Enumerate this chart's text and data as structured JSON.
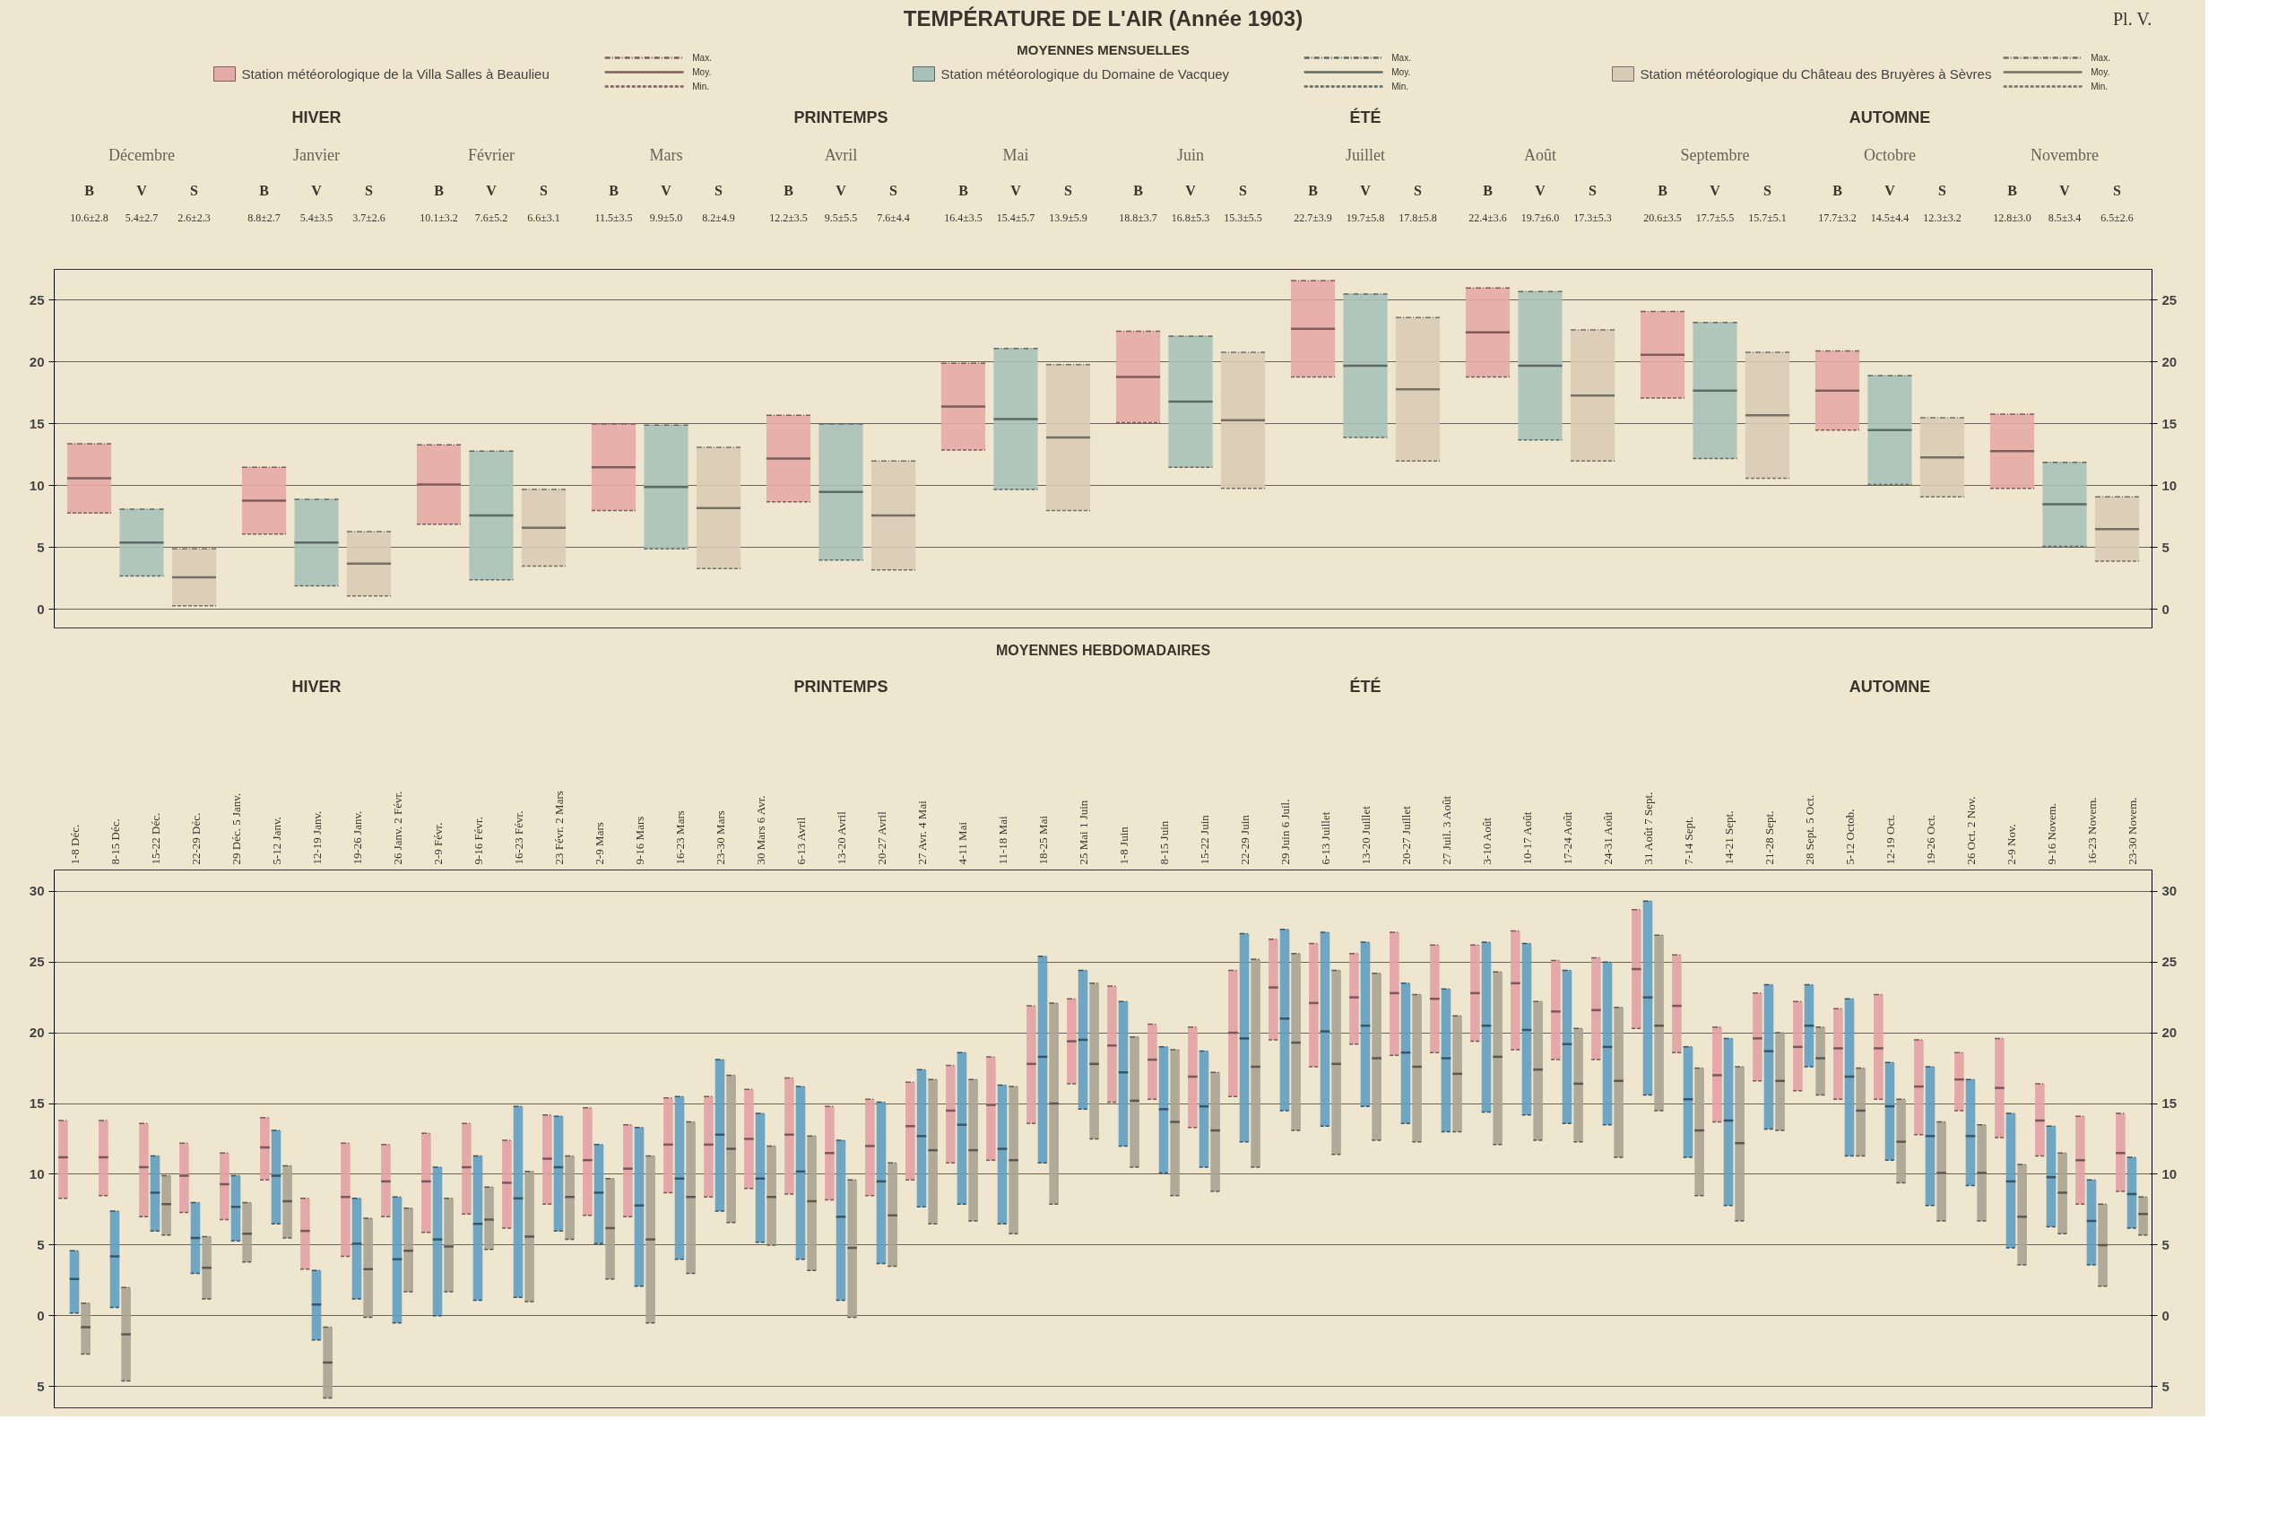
{
  "chart_data": [
    {
      "type": "box",
      "title": "TEMPÉRATURE DE L'AIR (Année 1903)",
      "subtitle": "MOYENNES MENSUELLES",
      "categories": [
        "Décembre",
        "Janvier",
        "Février",
        "Mars",
        "Avril",
        "Mai",
        "Juin",
        "Juillet",
        "Août",
        "Septembre",
        "Octobre",
        "Novembre"
      ],
      "ylim": [
        -1.5,
        27.5
      ],
      "yticks": [
        0,
        5,
        10,
        15,
        20,
        25
      ],
      "y2lim": [
        -1.5,
        27.5
      ],
      "y2ticks": [
        0,
        5,
        10,
        15,
        20,
        25
      ],
      "grid": "y",
      "legend": "top",
      "annotations": [
        "Max.",
        "Moy.",
        "Min.",
        "HIVER",
        "PRINTEMPS",
        "ÉTÉ",
        "AUTOMNE",
        "B",
        "V",
        "S",
        "Pl. V."
      ],
      "series": [
        {
          "name": "Station météorologique de la Villa Salles à Beaulieu",
          "color": "#e6aaa6",
          "value_labels": [
            "10.6±2.8",
            "8.8±2.7",
            "10.1±3.2",
            "11.5±3.5",
            "12.2±3.5",
            "16.4±3.5",
            "18.8±3.7",
            "22.7±3.9",
            "22.4±3.6",
            "20.6±3.5",
            "17.7±3.2",
            "12.8±3.0"
          ],
          "boxes": [
            {
              "low": 7.8,
              "q1": 7.8,
              "median": 10.6,
              "q3": 13.4,
              "high": 13.4
            },
            {
              "low": 6.1,
              "q1": 6.1,
              "median": 8.8,
              "q3": 11.5,
              "high": 11.5
            },
            {
              "low": 6.9,
              "q1": 6.9,
              "median": 10.1,
              "q3": 13.3,
              "high": 13.3
            },
            {
              "low": 8.0,
              "q1": 8.0,
              "median": 11.5,
              "q3": 15.0,
              "high": 15.0
            },
            {
              "low": 8.7,
              "q1": 8.7,
              "median": 12.2,
              "q3": 15.7,
              "high": 15.7
            },
            {
              "low": 12.9,
              "q1": 12.9,
              "median": 16.4,
              "q3": 19.9,
              "high": 19.9
            },
            {
              "low": 15.1,
              "q1": 15.1,
              "median": 18.8,
              "q3": 22.5,
              "high": 22.5
            },
            {
              "low": 18.8,
              "q1": 18.8,
              "median": 22.7,
              "q3": 26.6,
              "high": 26.6
            },
            {
              "low": 18.8,
              "q1": 18.8,
              "median": 22.4,
              "q3": 26.0,
              "high": 26.0
            },
            {
              "low": 17.1,
              "q1": 17.1,
              "median": 20.6,
              "q3": 24.1,
              "high": 24.1
            },
            {
              "low": 14.5,
              "q1": 14.5,
              "median": 17.7,
              "q3": 20.9,
              "high": 20.9
            },
            {
              "low": 9.8,
              "q1": 9.8,
              "median": 12.8,
              "q3": 15.8,
              "high": 15.8
            }
          ]
        },
        {
          "name": "Station météorologique du Domaine de Vacquey",
          "color": "#a8c2b8",
          "value_labels": [
            "5.4±2.7",
            "5.4±3.5",
            "7.6±5.2",
            "9.9±5.0",
            "9.5±5.5",
            "15.4±5.7",
            "16.8±5.3",
            "19.7±5.8",
            "19.7±6.0",
            "17.7±5.5",
            "14.5±4.4",
            "8.5±3.4"
          ],
          "boxes": [
            {
              "low": 2.7,
              "q1": 2.7,
              "median": 5.4,
              "q3": 8.1,
              "high": 8.1
            },
            {
              "low": 1.9,
              "q1": 1.9,
              "median": 5.4,
              "q3": 8.9,
              "high": 8.9
            },
            {
              "low": 2.4,
              "q1": 2.4,
              "median": 7.6,
              "q3": 12.8,
              "high": 12.8
            },
            {
              "low": 4.9,
              "q1": 4.9,
              "median": 9.9,
              "q3": 14.9,
              "high": 14.9
            },
            {
              "low": 4.0,
              "q1": 4.0,
              "median": 9.5,
              "q3": 15.0,
              "high": 15.0
            },
            {
              "low": 9.7,
              "q1": 9.7,
              "median": 15.4,
              "q3": 21.1,
              "high": 21.1
            },
            {
              "low": 11.5,
              "q1": 11.5,
              "median": 16.8,
              "q3": 22.1,
              "high": 22.1
            },
            {
              "low": 13.9,
              "q1": 13.9,
              "median": 19.7,
              "q3": 25.5,
              "high": 25.5
            },
            {
              "low": 13.7,
              "q1": 13.7,
              "median": 19.7,
              "q3": 25.7,
              "high": 25.7
            },
            {
              "low": 12.2,
              "q1": 12.2,
              "median": 17.7,
              "q3": 23.2,
              "high": 23.2
            },
            {
              "low": 10.1,
              "q1": 10.1,
              "median": 14.5,
              "q3": 18.9,
              "high": 18.9
            },
            {
              "low": 5.1,
              "q1": 5.1,
              "median": 8.5,
              "q3": 11.9,
              "high": 11.9
            }
          ]
        },
        {
          "name": "Station météorologique du Château des Bruyères à Sèvres",
          "color": "#d9cbb4",
          "value_labels": [
            "2.6±2.3",
            "3.7±2.6",
            "6.6±3.1",
            "8.2±4.9",
            "7.6±4.4",
            "13.9±5.9",
            "15.3±5.5",
            "17.8±5.8",
            "17.3±5.3",
            "15.7±5.1",
            "12.3±3.2",
            "6.5±2.6"
          ],
          "boxes": [
            {
              "low": 0.3,
              "q1": 0.3,
              "median": 2.6,
              "q3": 4.9,
              "high": 4.9
            },
            {
              "low": 1.1,
              "q1": 1.1,
              "median": 3.7,
              "q3": 6.3,
              "high": 6.3
            },
            {
              "low": 3.5,
              "q1": 3.5,
              "median": 6.6,
              "q3": 9.7,
              "high": 9.7
            },
            {
              "low": 3.3,
              "q1": 3.3,
              "median": 8.2,
              "q3": 13.1,
              "high": 13.1
            },
            {
              "low": 3.2,
              "q1": 3.2,
              "median": 7.6,
              "q3": 12.0,
              "high": 12.0
            },
            {
              "low": 8.0,
              "q1": 8.0,
              "median": 13.9,
              "q3": 19.8,
              "high": 19.8
            },
            {
              "low": 9.8,
              "q1": 9.8,
              "median": 15.3,
              "q3": 20.8,
              "high": 20.8
            },
            {
              "low": 12.0,
              "q1": 12.0,
              "median": 17.8,
              "q3": 23.6,
              "high": 23.6
            },
            {
              "low": 12.0,
              "q1": 12.0,
              "median": 17.3,
              "q3": 22.6,
              "high": 22.6
            },
            {
              "low": 10.6,
              "q1": 10.6,
              "median": 15.7,
              "q3": 20.8,
              "high": 20.8
            },
            {
              "low": 9.1,
              "q1": 9.1,
              "median": 12.3,
              "q3": 15.5,
              "high": 15.5
            },
            {
              "low": 3.9,
              "q1": 3.9,
              "median": 6.5,
              "q3": 9.1,
              "high": 9.1
            }
          ]
        }
      ]
    },
    {
      "type": "box",
      "title": "MOYENNES HEBDOMADAIRES",
      "categories": [
        "1-8 Déc.",
        "8-15 Déc.",
        "15-22 Déc.",
        "22-29 Déc.",
        "29 Déc. 5 Janv.",
        "5-12 Janv.",
        "12-19 Janv.",
        "19-26 Janv.",
        "26 Janv. 2 Févr.",
        "2-9 Févr.",
        "9-16 Févr.",
        "16-23 Févr.",
        "23 Févr. 2 Mars",
        "2-9 Mars",
        "9-16 Mars",
        "16-23 Mars",
        "23-30 Mars",
        "30 Mars 6 Avr.",
        "6-13 Avril",
        "13-20 Avril",
        "20-27 Avril",
        "27 Avr. 4 Mai",
        "4-11 Mai",
        "11-18 Mai",
        "18-25 Mai",
        "25 Mai 1 Juin",
        "1-8 Juin",
        "8-15 Juin",
        "15-22 Juin",
        "22-29 Juin",
        "29 Juin 6 Juil.",
        "6-13 Juillet",
        "13-20 Juillet",
        "20-27 Juillet",
        "27 Juil. 3 Août",
        "3-10 Août",
        "10-17 Août",
        "17-24 Août",
        "24-31 Août",
        "31 Août 7 Sept.",
        "7-14 Sept.",
        "14-21 Sept.",
        "21-28 Sept.",
        "28 Sept. 5 Oct.",
        "5-12 Octob.",
        "12-19 Oct.",
        "19-26 Oct.",
        "26 Oct. 2 Nov.",
        "2-9 Nov.",
        "9-16 Novem.",
        "16-23 Novem.",
        "23-30 Novem."
      ],
      "ylim": [
        -6.5,
        31.5
      ],
      "yticks": [
        {
          "value": -5,
          "label": "5"
        },
        0,
        5,
        10,
        15,
        20,
        25,
        30
      ],
      "y2lim": [
        -6.5,
        31.5
      ],
      "y2ticks": [
        {
          "value": -5,
          "label": "5"
        },
        0,
        5,
        10,
        15,
        20,
        25,
        30
      ],
      "grid": "y",
      "annotations": [
        "HIVER",
        "PRINTEMPS",
        "ÉTÉ",
        "AUTOMNE"
      ],
      "series": [
        {
          "color": "#e3a1a4",
          "boxes": [
            {
              "low": 8.3,
              "q1": 8.3,
              "median": 11.2,
              "q3": 13.8,
              "high": 13.8
            },
            {
              "low": 8.5,
              "q1": 8.5,
              "median": 11.2,
              "q3": 13.8,
              "high": 13.8
            },
            {
              "low": 7.0,
              "q1": 7.0,
              "median": 10.5,
              "q3": 13.6,
              "high": 13.6
            },
            {
              "low": 7.3,
              "q1": 7.3,
              "median": 9.9,
              "q3": 12.2,
              "high": 12.2
            },
            {
              "low": 6.8,
              "q1": 6.8,
              "median": 9.3,
              "q3": 11.5,
              "high": 11.5
            },
            {
              "low": 9.6,
              "q1": 9.6,
              "median": 11.9,
              "q3": 14.0,
              "high": 14.0
            },
            {
              "low": 3.3,
              "q1": 3.3,
              "median": 6.0,
              "q3": 8.3,
              "high": 8.3
            },
            {
              "low": 4.2,
              "q1": 4.2,
              "median": 8.4,
              "q3": 12.2,
              "high": 12.2
            },
            {
              "low": 7.0,
              "q1": 7.0,
              "median": 9.5,
              "q3": 12.1,
              "high": 12.1
            },
            {
              "low": 5.9,
              "q1": 5.9,
              "median": 9.5,
              "q3": 12.9,
              "high": 12.9
            },
            {
              "low": 7.2,
              "q1": 7.2,
              "median": 10.5,
              "q3": 13.6,
              "high": 13.6
            },
            {
              "low": 6.2,
              "q1": 6.2,
              "median": 9.4,
              "q3": 12.4,
              "high": 12.4
            },
            {
              "low": 7.9,
              "q1": 7.9,
              "median": 11.1,
              "q3": 14.2,
              "high": 14.2
            },
            {
              "low": 7.1,
              "q1": 7.1,
              "median": 11.0,
              "q3": 14.7,
              "high": 14.7
            },
            {
              "low": 7.0,
              "q1": 7.0,
              "median": 10.4,
              "q3": 13.5,
              "high": 13.5
            },
            {
              "low": 8.7,
              "q1": 8.7,
              "median": 12.1,
              "q3": 15.4,
              "high": 15.4
            },
            {
              "low": 8.4,
              "q1": 8.4,
              "median": 12.1,
              "q3": 15.5,
              "high": 15.5
            },
            {
              "low": 9.0,
              "q1": 9.0,
              "median": 12.5,
              "q3": 16.0,
              "high": 16.0
            },
            {
              "low": 8.6,
              "q1": 8.6,
              "median": 12.8,
              "q3": 16.8,
              "high": 16.8
            },
            {
              "low": 8.2,
              "q1": 8.2,
              "median": 11.5,
              "q3": 14.8,
              "high": 14.8
            },
            {
              "low": 8.5,
              "q1": 8.5,
              "median": 12.0,
              "q3": 15.3,
              "high": 15.3
            },
            {
              "low": 9.6,
              "q1": 9.6,
              "median": 13.4,
              "q3": 16.5,
              "high": 16.5
            },
            {
              "low": 10.8,
              "q1": 10.8,
              "median": 14.5,
              "q3": 17.7,
              "high": 17.7
            },
            {
              "low": 11.0,
              "q1": 11.0,
              "median": 14.9,
              "q3": 18.3,
              "high": 18.3
            },
            {
              "low": 13.6,
              "q1": 13.6,
              "median": 17.8,
              "q3": 21.9,
              "high": 21.9
            },
            {
              "low": 16.4,
              "q1": 16.4,
              "median": 19.4,
              "q3": 22.4,
              "high": 22.4
            },
            {
              "low": 15.1,
              "q1": 15.1,
              "median": 19.1,
              "q3": 23.3,
              "high": 23.3
            },
            {
              "low": 15.3,
              "q1": 15.3,
              "median": 18.1,
              "q3": 20.6,
              "high": 20.6
            },
            {
              "low": 13.3,
              "q1": 13.3,
              "median": 16.9,
              "q3": 20.4,
              "high": 20.4
            },
            {
              "low": 15.5,
              "q1": 15.5,
              "median": 20.0,
              "q3": 24.4,
              "high": 24.4
            },
            {
              "low": 19.5,
              "q1": 19.5,
              "median": 23.2,
              "q3": 26.6,
              "high": 26.6
            },
            {
              "low": 17.6,
              "q1": 17.6,
              "median": 22.1,
              "q3": 26.3,
              "high": 26.3
            },
            {
              "low": 19.2,
              "q1": 19.2,
              "median": 22.5,
              "q3": 25.6,
              "high": 25.6
            },
            {
              "low": 18.4,
              "q1": 18.4,
              "median": 22.8,
              "q3": 27.1,
              "high": 27.1
            },
            {
              "low": 18.6,
              "q1": 18.6,
              "median": 22.4,
              "q3": 26.2,
              "high": 26.2
            },
            {
              "low": 19.4,
              "q1": 19.4,
              "median": 22.8,
              "q3": 26.2,
              "high": 26.2
            },
            {
              "low": 18.8,
              "q1": 18.8,
              "median": 23.5,
              "q3": 27.2,
              "high": 27.2
            },
            {
              "low": 18.1,
              "q1": 18.1,
              "median": 21.5,
              "q3": 25.1,
              "high": 25.1
            },
            {
              "low": 18.1,
              "q1": 18.1,
              "median": 21.6,
              "q3": 25.3,
              "high": 25.3
            },
            {
              "low": 20.3,
              "q1": 20.3,
              "median": 24.5,
              "q3": 28.7,
              "high": 28.7
            },
            {
              "low": 18.6,
              "q1": 18.6,
              "median": 21.9,
              "q3": 25.5,
              "high": 25.5
            },
            {
              "low": 13.7,
              "q1": 13.7,
              "median": 17.0,
              "q3": 20.4,
              "high": 20.4
            },
            {
              "low": 16.6,
              "q1": 16.6,
              "median": 19.6,
              "q3": 22.8,
              "high": 22.8
            },
            {
              "low": 15.9,
              "q1": 15.9,
              "median": 19.0,
              "q3": 22.2,
              "high": 22.2
            },
            {
              "low": 15.3,
              "q1": 15.3,
              "median": 18.9,
              "q3": 21.7,
              "high": 21.7
            },
            {
              "low": 15.3,
              "q1": 15.3,
              "median": 18.9,
              "q3": 22.7,
              "high": 22.7
            },
            {
              "low": 12.8,
              "q1": 12.8,
              "median": 16.2,
              "q3": 19.5,
              "high": 19.5
            },
            {
              "low": 14.5,
              "q1": 14.5,
              "median": 16.7,
              "q3": 18.6,
              "high": 18.6
            },
            {
              "low": 12.6,
              "q1": 12.6,
              "median": 16.1,
              "q3": 19.6,
              "high": 19.6
            },
            {
              "low": 11.3,
              "q1": 11.3,
              "median": 13.8,
              "q3": 16.4,
              "high": 16.4
            },
            {
              "low": 7.9,
              "q1": 7.9,
              "median": 11.0,
              "q3": 14.1,
              "high": 14.1
            },
            {
              "low": 8.8,
              "q1": 8.8,
              "median": 11.5,
              "q3": 14.3,
              "high": 14.3
            }
          ]
        },
        {
          "color": "#5f9ec2",
          "boxes": [
            {
              "low": 0.2,
              "q1": 0.2,
              "median": 2.6,
              "q3": 4.6,
              "high": 4.6
            },
            {
              "low": 0.6,
              "q1": 0.6,
              "median": 4.2,
              "q3": 7.4,
              "high": 7.4
            },
            {
              "low": 6.0,
              "q1": 6.0,
              "median": 8.7,
              "q3": 11.3,
              "high": 11.3
            },
            {
              "low": 3.0,
              "q1": 3.0,
              "median": 5.5,
              "q3": 8.0,
              "high": 8.0
            },
            {
              "low": 5.3,
              "q1": 5.3,
              "median": 7.7,
              "q3": 9.9,
              "high": 9.9
            },
            {
              "low": 6.5,
              "q1": 6.5,
              "median": 9.9,
              "q3": 13.1,
              "high": 13.1
            },
            {
              "low": -1.7,
              "q1": -1.7,
              "median": 0.8,
              "q3": 3.2,
              "high": 3.2
            },
            {
              "low": 1.2,
              "q1": 1.2,
              "median": 5.1,
              "q3": 8.3,
              "high": 8.3
            },
            {
              "low": -0.5,
              "q1": -0.5,
              "median": 4.0,
              "q3": 8.4,
              "high": 8.4
            },
            {
              "low": 0.0,
              "q1": 0.0,
              "median": 5.4,
              "q3": 10.5,
              "high": 10.5
            },
            {
              "low": 1.1,
              "q1": 1.1,
              "median": 6.5,
              "q3": 11.3,
              "high": 11.3
            },
            {
              "low": 1.3,
              "q1": 1.3,
              "median": 8.3,
              "q3": 14.8,
              "high": 14.8
            },
            {
              "low": 6.0,
              "q1": 6.0,
              "median": 10.5,
              "q3": 14.1,
              "high": 14.1
            },
            {
              "low": 5.1,
              "q1": 5.1,
              "median": 8.7,
              "q3": 12.1,
              "high": 12.1
            },
            {
              "low": 2.1,
              "q1": 2.1,
              "median": 7.8,
              "q3": 13.3,
              "high": 13.3
            },
            {
              "low": 4.0,
              "q1": 4.0,
              "median": 9.7,
              "q3": 15.5,
              "high": 15.5
            },
            {
              "low": 7.4,
              "q1": 7.4,
              "median": 12.8,
              "q3": 18.1,
              "high": 18.1
            },
            {
              "low": 5.2,
              "q1": 5.2,
              "median": 9.7,
              "q3": 14.3,
              "high": 14.3
            },
            {
              "low": 4.0,
              "q1": 4.0,
              "median": 10.2,
              "q3": 16.2,
              "high": 16.2
            },
            {
              "low": 1.1,
              "q1": 1.1,
              "median": 7.0,
              "q3": 12.4,
              "high": 12.4
            },
            {
              "low": 3.7,
              "q1": 3.7,
              "median": 9.5,
              "q3": 15.1,
              "high": 15.1
            },
            {
              "low": 7.7,
              "q1": 7.7,
              "median": 12.7,
              "q3": 17.4,
              "high": 17.4
            },
            {
              "low": 7.9,
              "q1": 7.9,
              "median": 13.5,
              "q3": 18.6,
              "high": 18.6
            },
            {
              "low": 6.5,
              "q1": 6.5,
              "median": 11.8,
              "q3": 16.3,
              "high": 16.3
            },
            {
              "low": 10.8,
              "q1": 10.8,
              "median": 18.3,
              "q3": 25.4,
              "high": 25.4
            },
            {
              "low": 14.6,
              "q1": 14.6,
              "median": 19.5,
              "q3": 24.4,
              "high": 24.4
            },
            {
              "low": 12.0,
              "q1": 12.0,
              "median": 17.2,
              "q3": 22.2,
              "high": 22.2
            },
            {
              "low": 10.1,
              "q1": 10.1,
              "median": 14.6,
              "q3": 19.0,
              "high": 19.0
            },
            {
              "low": 10.5,
              "q1": 10.5,
              "median": 14.8,
              "q3": 18.7,
              "high": 18.7
            },
            {
              "low": 12.3,
              "q1": 12.3,
              "median": 19.6,
              "q3": 27.0,
              "high": 27.0
            },
            {
              "low": 14.5,
              "q1": 14.5,
              "median": 21.0,
              "q3": 27.3,
              "high": 27.3
            },
            {
              "low": 13.4,
              "q1": 13.4,
              "median": 20.1,
              "q3": 27.1,
              "high": 27.1
            },
            {
              "low": 14.8,
              "q1": 14.8,
              "median": 20.5,
              "q3": 26.4,
              "high": 26.4
            },
            {
              "low": 13.6,
              "q1": 13.6,
              "median": 18.6,
              "q3": 23.5,
              "high": 23.5
            },
            {
              "low": 13.0,
              "q1": 13.0,
              "median": 18.2,
              "q3": 23.1,
              "high": 23.1
            },
            {
              "low": 14.4,
              "q1": 14.4,
              "median": 20.5,
              "q3": 26.4,
              "high": 26.4
            },
            {
              "low": 14.2,
              "q1": 14.2,
              "median": 20.2,
              "q3": 26.3,
              "high": 26.3
            },
            {
              "low": 13.6,
              "q1": 13.6,
              "median": 19.2,
              "q3": 24.4,
              "high": 24.4
            },
            {
              "low": 13.5,
              "q1": 13.5,
              "median": 19.0,
              "q3": 25.0,
              "high": 25.0
            },
            {
              "low": 15.6,
              "q1": 15.6,
              "median": 22.5,
              "q3": 29.3,
              "high": 29.3
            },
            {
              "low": 11.2,
              "q1": 11.2,
              "median": 15.3,
              "q3": 19.0,
              "high": 19.0
            },
            {
              "low": 7.8,
              "q1": 7.8,
              "median": 13.8,
              "q3": 19.6,
              "high": 19.6
            },
            {
              "low": 13.2,
              "q1": 13.2,
              "median": 18.7,
              "q3": 23.4,
              "high": 23.4
            },
            {
              "low": 17.6,
              "q1": 17.6,
              "median": 20.5,
              "q3": 23.4,
              "high": 23.4
            },
            {
              "low": 11.3,
              "q1": 11.3,
              "median": 16.9,
              "q3": 22.4,
              "high": 22.4
            },
            {
              "low": 11.0,
              "q1": 11.0,
              "median": 14.8,
              "q3": 17.9,
              "high": 17.9
            },
            {
              "low": 7.8,
              "q1": 7.8,
              "median": 12.7,
              "q3": 17.6,
              "high": 17.6
            },
            {
              "low": 9.2,
              "q1": 9.2,
              "median": 12.7,
              "q3": 16.7,
              "high": 16.7
            },
            {
              "low": 4.8,
              "q1": 4.8,
              "median": 9.5,
              "q3": 14.3,
              "high": 14.3
            },
            {
              "low": 6.3,
              "q1": 6.3,
              "median": 9.8,
              "q3": 13.4,
              "high": 13.4
            },
            {
              "low": 3.6,
              "q1": 3.6,
              "median": 6.7,
              "q3": 9.6,
              "high": 9.6
            },
            {
              "low": 6.2,
              "q1": 6.2,
              "median": 8.6,
              "q3": 11.2,
              "high": 11.2
            }
          ]
        },
        {
          "color": "#aaa392",
          "boxes": [
            {
              "low": -2.7,
              "q1": -2.7,
              "median": -0.8,
              "q3": 0.9,
              "high": 0.9
            },
            {
              "low": -4.6,
              "q1": -4.6,
              "median": -1.3,
              "q3": 2.0,
              "high": 2.0
            },
            {
              "low": 5.7,
              "q1": 5.7,
              "median": 7.9,
              "q3": 9.9,
              "high": 9.9
            },
            {
              "low": 1.2,
              "q1": 1.2,
              "median": 3.4,
              "q3": 5.6,
              "high": 5.6
            },
            {
              "low": 3.8,
              "q1": 3.8,
              "median": 5.8,
              "q3": 8.0,
              "high": 8.0
            },
            {
              "low": 5.5,
              "q1": 5.5,
              "median": 8.1,
              "q3": 10.6,
              "high": 10.6
            },
            {
              "low": -5.8,
              "q1": -5.8,
              "median": -3.3,
              "q3": -0.8,
              "high": -0.8
            },
            {
              "low": -0.1,
              "q1": -0.1,
              "median": 3.3,
              "q3": 6.9,
              "high": 6.9
            },
            {
              "low": 1.7,
              "q1": 1.7,
              "median": 4.6,
              "q3": 7.6,
              "high": 7.6
            },
            {
              "low": 1.7,
              "q1": 1.7,
              "median": 4.9,
              "q3": 8.3,
              "high": 8.3
            },
            {
              "low": 4.7,
              "q1": 4.7,
              "median": 6.8,
              "q3": 9.1,
              "high": 9.1
            },
            {
              "low": 1.0,
              "q1": 1.0,
              "median": 5.6,
              "q3": 10.2,
              "high": 10.2
            },
            {
              "low": 5.4,
              "q1": 5.4,
              "median": 8.4,
              "q3": 11.3,
              "high": 11.3
            },
            {
              "low": 2.6,
              "q1": 2.6,
              "median": 6.2,
              "q3": 9.7,
              "high": 9.7
            },
            {
              "low": -0.5,
              "q1": -0.5,
              "median": 5.4,
              "q3": 11.3,
              "high": 11.3
            },
            {
              "low": 3.0,
              "q1": 3.0,
              "median": 8.4,
              "q3": 13.7,
              "high": 13.7
            },
            {
              "low": 6.6,
              "q1": 6.6,
              "median": 11.8,
              "q3": 17.0,
              "high": 17.0
            },
            {
              "low": 5.0,
              "q1": 5.0,
              "median": 8.4,
              "q3": 12.0,
              "high": 12.0
            },
            {
              "low": 3.2,
              "q1": 3.2,
              "median": 8.1,
              "q3": 12.7,
              "high": 12.7
            },
            {
              "low": -0.1,
              "q1": -0.1,
              "median": 4.8,
              "q3": 9.6,
              "high": 9.6
            },
            {
              "low": 3.5,
              "q1": 3.5,
              "median": 7.1,
              "q3": 10.8,
              "high": 10.8
            },
            {
              "low": 6.5,
              "q1": 6.5,
              "median": 11.7,
              "q3": 16.7,
              "high": 16.7
            },
            {
              "low": 6.7,
              "q1": 6.7,
              "median": 11.7,
              "q3": 16.7,
              "high": 16.7
            },
            {
              "low": 5.8,
              "q1": 5.8,
              "median": 11.0,
              "q3": 16.2,
              "high": 16.2
            },
            {
              "low": 7.9,
              "q1": 7.9,
              "median": 15.0,
              "q3": 22.1,
              "high": 22.1
            },
            {
              "low": 12.5,
              "q1": 12.5,
              "median": 17.8,
              "q3": 23.5,
              "high": 23.5
            },
            {
              "low": 10.5,
              "q1": 10.5,
              "median": 15.2,
              "q3": 19.7,
              "high": 19.7
            },
            {
              "low": 8.5,
              "q1": 8.5,
              "median": 13.7,
              "q3": 18.8,
              "high": 18.8
            },
            {
              "low": 8.8,
              "q1": 8.8,
              "median": 13.1,
              "q3": 17.2,
              "high": 17.2
            },
            {
              "low": 10.5,
              "q1": 10.5,
              "median": 17.6,
              "q3": 25.2,
              "high": 25.2
            },
            {
              "low": 13.1,
              "q1": 13.1,
              "median": 19.3,
              "q3": 25.6,
              "high": 25.6
            },
            {
              "low": 11.4,
              "q1": 11.4,
              "median": 17.8,
              "q3": 24.4,
              "high": 24.4
            },
            {
              "low": 12.4,
              "q1": 12.4,
              "median": 18.2,
              "q3": 24.2,
              "high": 24.2
            },
            {
              "low": 12.3,
              "q1": 12.3,
              "median": 17.6,
              "q3": 22.7,
              "high": 22.7
            },
            {
              "low": 13.0,
              "q1": 13.0,
              "median": 17.1,
              "q3": 21.2,
              "high": 21.2
            },
            {
              "low": 12.1,
              "q1": 12.1,
              "median": 18.3,
              "q3": 24.3,
              "high": 24.3
            },
            {
              "low": 12.4,
              "q1": 12.4,
              "median": 17.4,
              "q3": 22.2,
              "high": 22.2
            },
            {
              "low": 12.3,
              "q1": 12.3,
              "median": 16.4,
              "q3": 20.3,
              "high": 20.3
            },
            {
              "low": 11.2,
              "q1": 11.2,
              "median": 16.6,
              "q3": 21.8,
              "high": 21.8
            },
            {
              "low": 14.5,
              "q1": 14.5,
              "median": 20.5,
              "q3": 26.9,
              "high": 26.9
            },
            {
              "low": 8.5,
              "q1": 8.5,
              "median": 13.1,
              "q3": 17.5,
              "high": 17.5
            },
            {
              "low": 6.7,
              "q1": 6.7,
              "median": 12.2,
              "q3": 17.6,
              "high": 17.6
            },
            {
              "low": 13.1,
              "q1": 13.1,
              "median": 16.6,
              "q3": 20.0,
              "high": 20.0
            },
            {
              "low": 15.6,
              "q1": 15.6,
              "median": 18.2,
              "q3": 20.4,
              "high": 20.4
            },
            {
              "low": 11.3,
              "q1": 11.3,
              "median": 14.5,
              "q3": 17.5,
              "high": 17.5
            },
            {
              "low": 9.4,
              "q1": 9.4,
              "median": 12.3,
              "q3": 15.3,
              "high": 15.3
            },
            {
              "low": 6.7,
              "q1": 6.7,
              "median": 10.1,
              "q3": 13.7,
              "high": 13.7
            },
            {
              "low": 6.7,
              "q1": 6.7,
              "median": 10.1,
              "q3": 13.5,
              "high": 13.5
            },
            {
              "low": 3.6,
              "q1": 3.6,
              "median": 7.0,
              "q3": 10.7,
              "high": 10.7
            },
            {
              "low": 5.8,
              "q1": 5.8,
              "median": 8.7,
              "q3": 11.5,
              "high": 11.5
            },
            {
              "low": 2.1,
              "q1": 2.1,
              "median": 5.0,
              "q3": 7.9,
              "high": 7.9
            },
            {
              "low": 5.7,
              "q1": 5.7,
              "median": 7.2,
              "q3": 8.4,
              "high": 8.4
            }
          ]
        }
      ]
    }
  ]
}
